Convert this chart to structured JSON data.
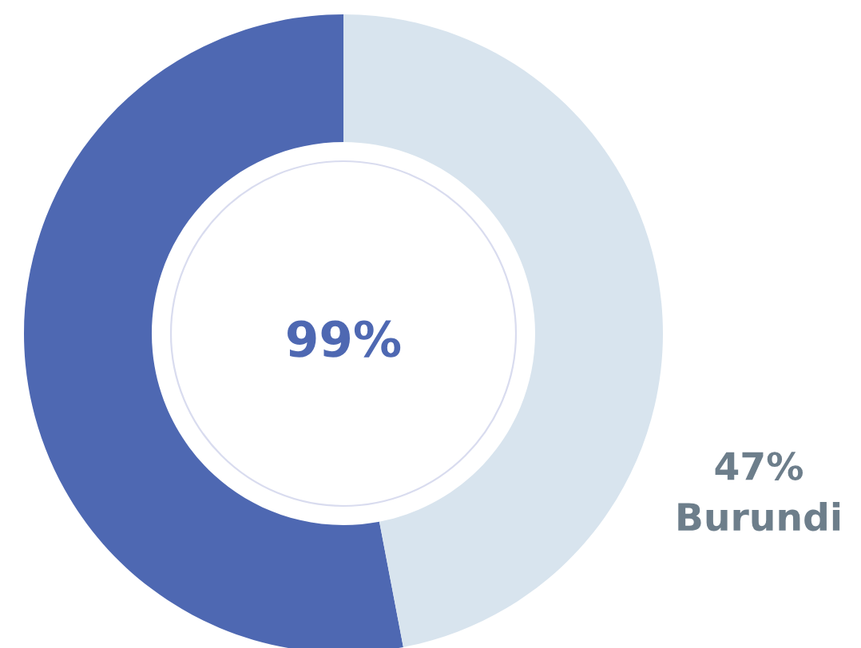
{
  "chart_data": {
    "type": "donut",
    "categories": [
      null,
      "Burundi"
    ],
    "values": [
      53,
      47
    ],
    "colors": [
      "#4e68b2",
      "#d8e4ee"
    ],
    "value_labels": [
      null,
      "47%"
    ],
    "annotations": [
      "99%"
    ]
  }
}
